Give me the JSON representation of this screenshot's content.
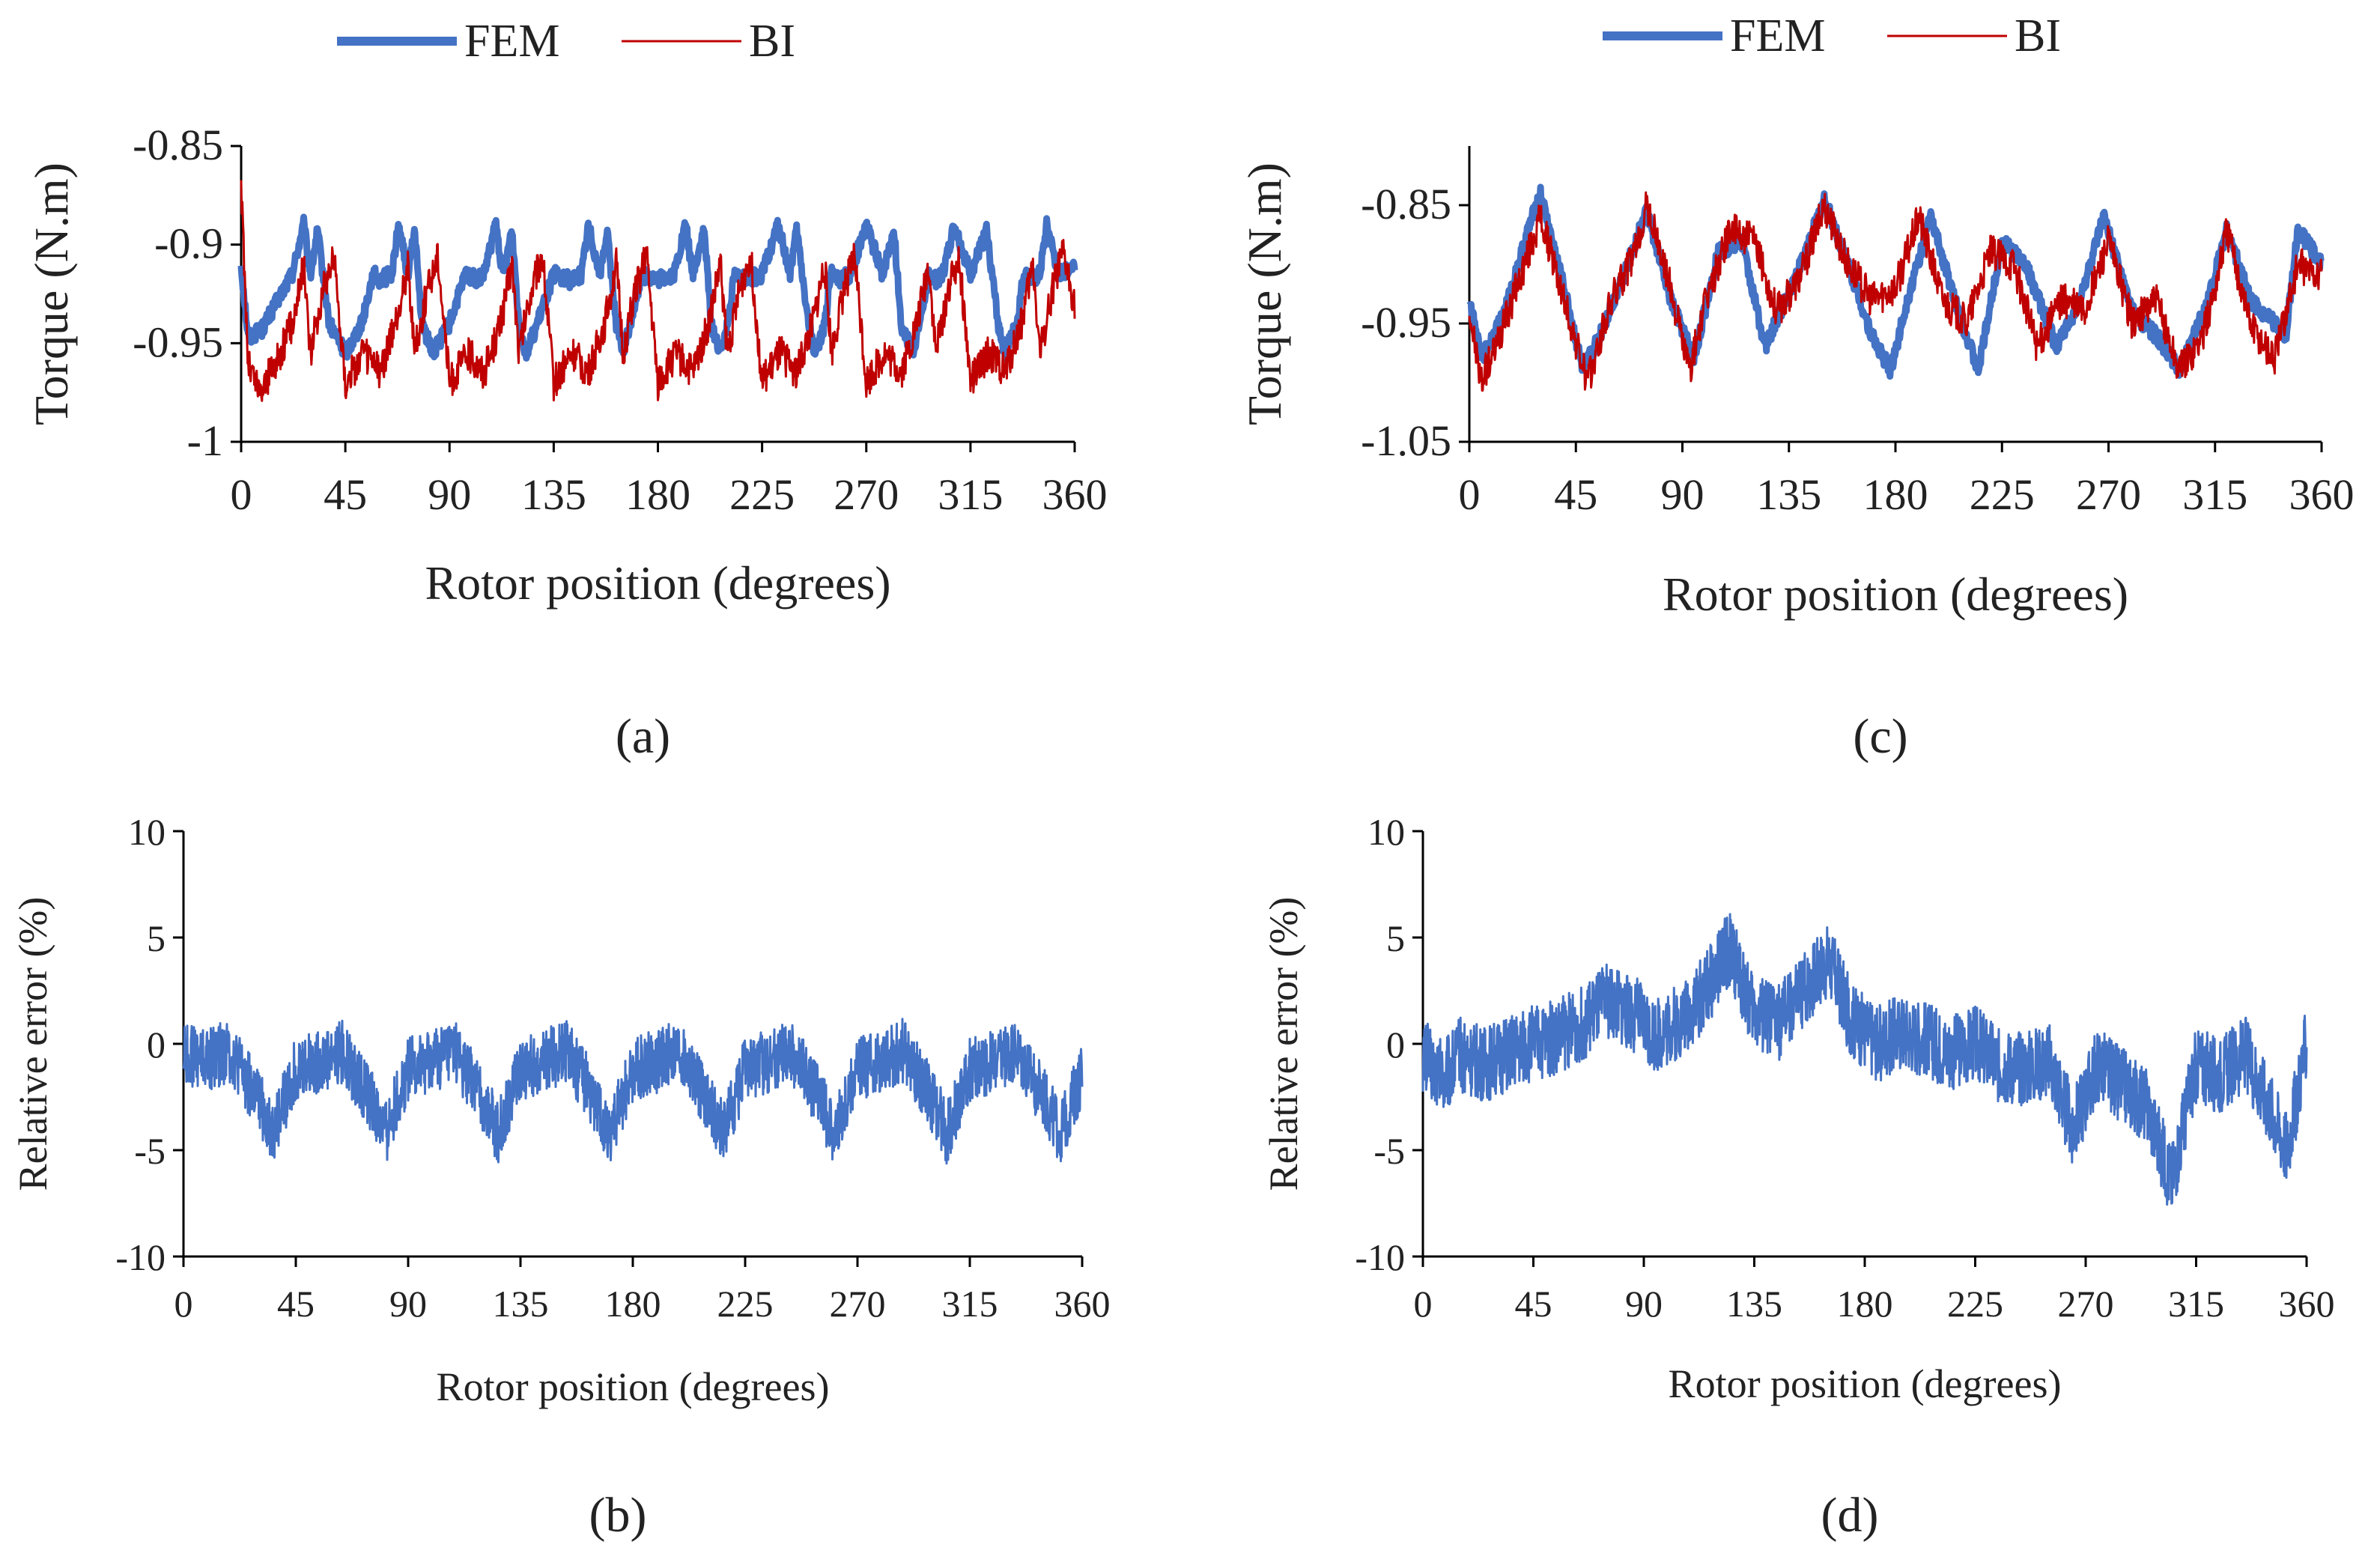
{
  "colors": {
    "fem": "#4472C4",
    "bi": "#C00000",
    "error": "#4472C4",
    "axis": "#000000"
  },
  "chart_data": [
    {
      "id": "a",
      "panel_label": "(a)",
      "type": "line",
      "xlabel": "Rotor position (degrees)",
      "ylabel": "Torque (N.m)",
      "xlim": [
        0,
        360
      ],
      "ylim": [
        -1.0,
        -0.85
      ],
      "xticks": [
        0,
        45,
        90,
        135,
        180,
        225,
        270,
        315,
        360
      ],
      "yticks": [
        -0.85,
        -0.9,
        -0.95,
        -1.0
      ],
      "ytick_labels": [
        "-0.85",
        "-0.9",
        "-0.95",
        "-1"
      ],
      "grid": false,
      "legend": {
        "position": "top"
      },
      "series": [
        {
          "name": "FEM",
          "key": "fem",
          "style": "thick",
          "x": [
            0,
            3,
            9,
            15,
            22,
            27,
            30,
            33,
            38,
            45,
            52,
            57,
            60,
            65,
            68,
            72,
            75,
            78,
            83,
            90,
            97,
            102,
            105,
            110,
            113,
            117,
            120,
            123,
            128,
            135,
            142,
            147,
            150,
            155,
            158,
            162,
            165,
            168,
            173,
            180,
            187,
            192,
            195,
            200,
            203,
            207,
            210,
            213,
            218,
            225,
            232,
            237,
            240,
            245,
            248,
            252,
            255,
            258,
            263,
            270,
            277,
            282,
            285,
            290,
            293,
            297,
            300,
            303,
            308,
            315,
            322,
            327,
            330,
            335,
            338,
            342,
            345,
            348,
            353,
            360
          ],
          "y": [
            -0.91,
            -0.947,
            -0.943,
            -0.93,
            -0.915,
            -0.89,
            -0.915,
            -0.893,
            -0.94,
            -0.955,
            -0.94,
            -0.915,
            -0.918,
            -0.915,
            -0.89,
            -0.915,
            -0.893,
            -0.94,
            -0.955,
            -0.94,
            -0.915,
            -0.918,
            -0.915,
            -0.89,
            -0.915,
            -0.893,
            -0.94,
            -0.955,
            -0.94,
            -0.915,
            -0.918,
            -0.915,
            -0.89,
            -0.915,
            -0.893,
            -0.94,
            -0.955,
            -0.94,
            -0.915,
            -0.918,
            -0.915,
            -0.89,
            -0.915,
            -0.893,
            -0.94,
            -0.955,
            -0.94,
            -0.915,
            -0.918,
            -0.915,
            -0.89,
            -0.915,
            -0.893,
            -0.94,
            -0.955,
            -0.94,
            -0.915,
            -0.918,
            -0.915,
            -0.89,
            -0.915,
            -0.893,
            -0.94,
            -0.955,
            -0.94,
            -0.915,
            -0.918,
            -0.915,
            -0.89,
            -0.915,
            -0.893,
            -0.94,
            -0.955,
            -0.94,
            -0.915,
            -0.918,
            -0.915,
            -0.89,
            -0.915,
            -0.91
          ]
        },
        {
          "name": "BI",
          "key": "bi",
          "style": "thin",
          "x": [
            0,
            3,
            8,
            15,
            22,
            27,
            30,
            35,
            40,
            45,
            53,
            60,
            67,
            72,
            75,
            80,
            85,
            90,
            98,
            105,
            112,
            117,
            120,
            125,
            130,
            135,
            143,
            150,
            157,
            162,
            165,
            170,
            175,
            180,
            188,
            195,
            202,
            207,
            210,
            215,
            220,
            225,
            233,
            240,
            247,
            252,
            255,
            260,
            265,
            270,
            278,
            285,
            292,
            297,
            300,
            305,
            310,
            315,
            323,
            330,
            337,
            342,
            345,
            350,
            355,
            360
          ],
          "y": [
            -0.87,
            -0.96,
            -0.975,
            -0.96,
            -0.94,
            -0.91,
            -0.955,
            -0.925,
            -0.905,
            -0.97,
            -0.955,
            -0.965,
            -0.94,
            -0.91,
            -0.955,
            -0.925,
            -0.905,
            -0.97,
            -0.955,
            -0.965,
            -0.94,
            -0.91,
            -0.955,
            -0.925,
            -0.905,
            -0.97,
            -0.955,
            -0.965,
            -0.94,
            -0.91,
            -0.955,
            -0.925,
            -0.905,
            -0.97,
            -0.955,
            -0.965,
            -0.94,
            -0.91,
            -0.955,
            -0.925,
            -0.905,
            -0.97,
            -0.955,
            -0.965,
            -0.94,
            -0.91,
            -0.955,
            -0.925,
            -0.905,
            -0.97,
            -0.955,
            -0.965,
            -0.94,
            -0.91,
            -0.955,
            -0.925,
            -0.905,
            -0.97,
            -0.955,
            -0.965,
            -0.94,
            -0.91,
            -0.955,
            -0.925,
            -0.905,
            -0.93
          ]
        }
      ]
    },
    {
      "id": "b",
      "panel_label": "(b)",
      "type": "line",
      "xlabel": "Rotor position (degrees)",
      "ylabel": "Relative error (%)",
      "xlim": [
        0,
        360
      ],
      "ylim": [
        -10,
        10
      ],
      "xticks": [
        0,
        45,
        90,
        135,
        180,
        225,
        270,
        315,
        360
      ],
      "yticks": [
        10,
        5,
        0,
        -5,
        -10
      ],
      "ytick_labels": [
        "10",
        "5",
        "0",
        "-5",
        "-10"
      ],
      "grid": false,
      "legend": null,
      "series": [
        {
          "key": "error",
          "style": "band",
          "x": [
            0,
            10,
            18,
            28,
            36,
            45,
            55,
            63,
            73,
            81,
            90,
            100,
            108,
            118,
            126,
            135,
            145,
            153,
            163,
            171,
            180,
            190,
            198,
            208,
            216,
            225,
            235,
            243,
            253,
            261,
            270,
            280,
            288,
            298,
            306,
            315,
            325,
            333,
            343,
            351,
            360
          ],
          "y": [
            -0.5,
            -0.8,
            -0.3,
            -2.2,
            -4.2,
            -1.2,
            -0.8,
            -0.3,
            -2.2,
            -4.2,
            -1.2,
            -0.8,
            -0.3,
            -2.2,
            -4.2,
            -1.2,
            -0.8,
            -0.3,
            -2.2,
            -4.2,
            -1.2,
            -0.8,
            -0.3,
            -2.2,
            -4.2,
            -1.2,
            -0.8,
            -0.3,
            -2.2,
            -4.2,
            -1.2,
            -0.8,
            -0.3,
            -2.2,
            -4.2,
            -1.2,
            -0.8,
            -0.3,
            -2.2,
            -4.2,
            -1.5
          ],
          "band": 1.5
        }
      ]
    },
    {
      "id": "c",
      "panel_label": "(c)",
      "type": "line",
      "xlabel": "Rotor position (degrees)",
      "ylabel": "Torque (N.m)",
      "xlim": [
        0,
        360
      ],
      "ylim": [
        -1.05,
        -0.8
      ],
      "xticks": [
        0,
        45,
        90,
        135,
        180,
        225,
        270,
        315,
        360
      ],
      "yticks": [
        -0.85,
        -0.95,
        -1.05
      ],
      "ytick_labels": [
        "-0.85",
        "-0.95",
        "-1.05"
      ],
      "grid": false,
      "legend": {
        "position": "top"
      },
      "series": [
        {
          "name": "FEM",
          "key": "fem",
          "style": "thick",
          "x": [
            0,
            5,
            15,
            25,
            30,
            40,
            48,
            55,
            65,
            75,
            85,
            95,
            105,
            115,
            125,
            140,
            150,
            160,
            170,
            178,
            185,
            195,
            205,
            210,
            215,
            225,
            235,
            248,
            258,
            268,
            280,
            290,
            300,
            312,
            320,
            330,
            345,
            350,
            360
          ],
          "y": [
            -0.93,
            -0.98,
            -0.94,
            -0.87,
            -0.84,
            -0.92,
            -0.99,
            -0.96,
            -0.91,
            -0.855,
            -0.93,
            -0.98,
            -0.89,
            -0.88,
            -0.97,
            -0.9,
            -0.845,
            -0.9,
            -0.96,
            -0.99,
            -0.93,
            -0.86,
            -0.93,
            -0.96,
            -0.99,
            -0.88,
            -0.9,
            -0.97,
            -0.93,
            -0.86,
            -0.94,
            -0.96,
            -0.99,
            -0.93,
            -0.87,
            -0.93,
            -0.96,
            -0.87,
            -0.9
          ]
        },
        {
          "name": "BI",
          "key": "bi",
          "style": "thin",
          "x": [
            0,
            5,
            15,
            25,
            30,
            40,
            50,
            60,
            70,
            75,
            85,
            93,
            100,
            110,
            120,
            130,
            140,
            150,
            160,
            170,
            180,
            190,
            200,
            210,
            220,
            230,
            240,
            250,
            260,
            270,
            280,
            290,
            300,
            310,
            315,
            320,
            330,
            340,
            350,
            360
          ],
          "y": [
            -0.94,
            -1.0,
            -0.95,
            -0.89,
            -0.86,
            -0.93,
            -1.0,
            -0.93,
            -0.89,
            -0.85,
            -0.92,
            -0.99,
            -0.93,
            -0.87,
            -0.88,
            -0.94,
            -0.91,
            -0.85,
            -0.9,
            -0.93,
            -0.92,
            -0.86,
            -0.93,
            -0.95,
            -0.89,
            -0.9,
            -0.97,
            -0.93,
            -0.94,
            -0.88,
            -0.95,
            -0.93,
            -0.99,
            -0.96,
            -0.92,
            -0.87,
            -0.95,
            -0.98,
            -0.9,
            -0.91
          ]
        }
      ]
    },
    {
      "id": "d",
      "panel_label": "(d)",
      "type": "line",
      "xlabel": "Rotor position (degrees)",
      "ylabel": "Relative error (%)",
      "xlim": [
        0,
        360
      ],
      "ylim": [
        -10,
        10
      ],
      "xticks": [
        0,
        45,
        90,
        135,
        180,
        225,
        270,
        315,
        360
      ],
      "yticks": [
        10,
        5,
        0,
        -5,
        -10
      ],
      "ytick_labels": [
        "10",
        "5",
        "0",
        "-5",
        "-10"
      ],
      "grid": false,
      "legend": null,
      "series": [
        {
          "key": "error",
          "style": "band",
          "x": [
            0,
            8,
            15,
            25,
            35,
            45,
            55,
            65,
            75,
            85,
            95,
            105,
            115,
            125,
            135,
            145,
            155,
            165,
            175,
            185,
            195,
            205,
            215,
            225,
            235,
            245,
            255,
            265,
            275,
            285,
            295,
            305,
            315,
            325,
            335,
            345,
            352,
            360
          ],
          "y": [
            -0.5,
            -1.5,
            -0.5,
            -1.0,
            -0.5,
            0.0,
            0.3,
            1.0,
            2.0,
            1.5,
            0.5,
            1.0,
            2.5,
            4.5,
            1.5,
            1.0,
            2.5,
            4.0,
            1.0,
            0.0,
            0.5,
            0.2,
            -0.5,
            0.0,
            -1.0,
            -1.2,
            -0.8,
            -4.0,
            -1.0,
            -2.0,
            -3.0,
            -6.5,
            -1.0,
            -1.5,
            -0.5,
            -3.0,
            -5.0,
            0.0
          ],
          "band": 1.8
        }
      ]
    }
  ]
}
